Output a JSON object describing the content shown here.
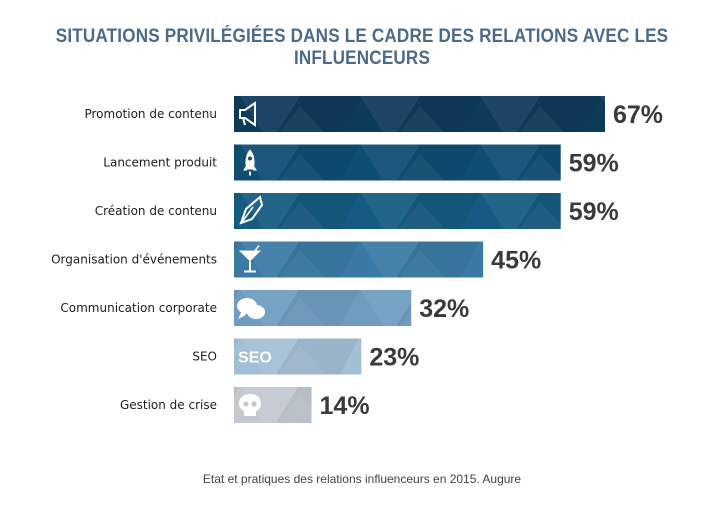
{
  "title": "SITUATIONS PRIVILÉGIÉES DANS LE CADRE DES RELATIONS AVEC LES INFLUENCEURS",
  "source": "Etat et pratiques des relations influenceurs en 2015. Augure",
  "chart_data": {
    "type": "bar",
    "orientation": "horizontal",
    "categories": [
      "Promotion de contenu",
      "Lancement produit",
      "Création de contenu",
      "Organisation d'événements",
      "Communication corporate",
      "SEO",
      "Gestion de crise"
    ],
    "values": [
      67,
      59,
      59,
      45,
      32,
      23,
      14
    ],
    "value_labels": [
      "67%",
      "59%",
      "59%",
      "45%",
      "32%",
      "23%",
      "14%"
    ],
    "icons": [
      "megaphone-icon",
      "rocket-icon",
      "pen-icon",
      "cocktail-icon",
      "speech-bubbles-icon",
      "seo-icon",
      "skull-icon"
    ],
    "icon_texts": [
      "",
      "",
      "",
      "",
      "",
      "SEO",
      ""
    ],
    "colors": [
      "#0e3a5a",
      "#0f4d73",
      "#155a82",
      "#3a7aa5",
      "#6e9dc0",
      "#a3bfd5",
      "#c3c9d1"
    ],
    "xlim": [
      0,
      67
    ],
    "grid": false,
    "legend": "none"
  }
}
